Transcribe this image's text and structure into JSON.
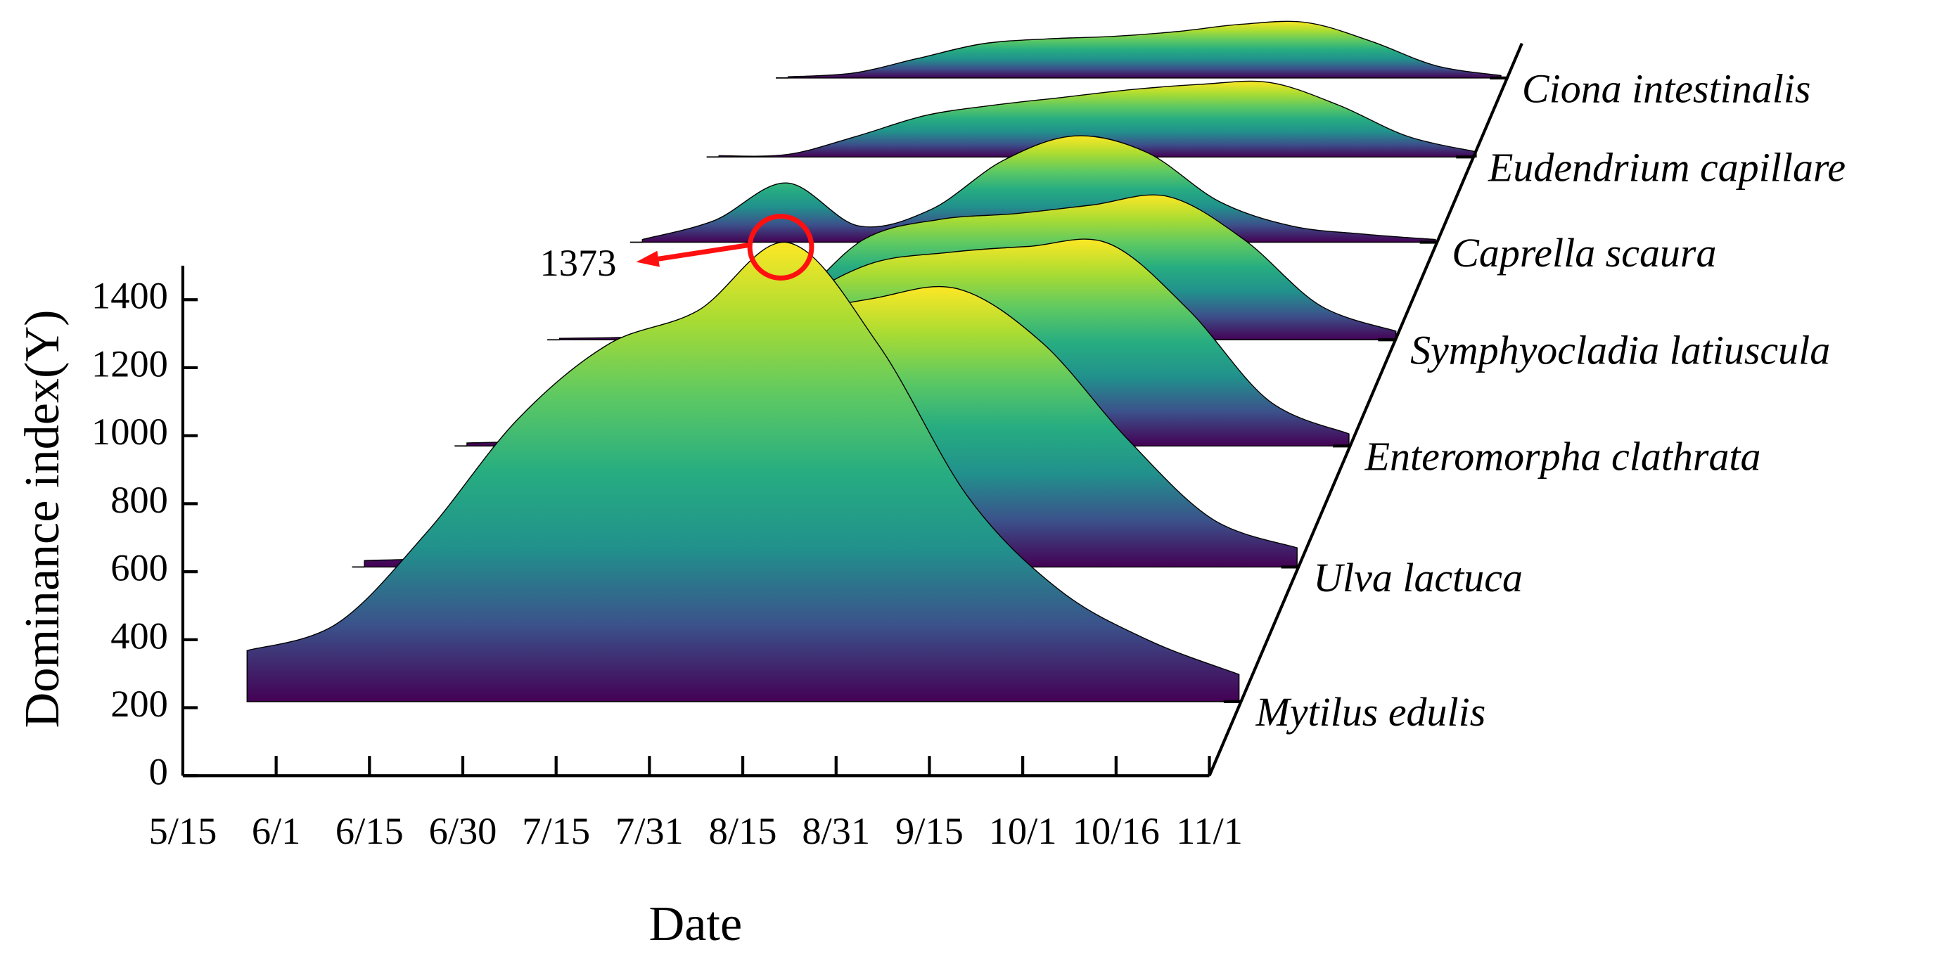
{
  "chart_data": {
    "type": "ridgeline",
    "x_label": "Date",
    "y_label": "Dominance index(Y)",
    "categories": [
      "5/15",
      "6/1",
      "6/15",
      "6/30",
      "7/15",
      "7/31",
      "8/15",
      "8/31",
      "9/15",
      "10/1",
      "10/16",
      "11/1"
    ],
    "ylim": [
      0,
      1500
    ],
    "yticks": [
      0,
      200,
      400,
      600,
      800,
      1000,
      1200,
      1400
    ],
    "colormap": [
      "#440154",
      "#3b528b",
      "#21918c",
      "#27ad81",
      "#5ec962",
      "#aadc32",
      "#fde725"
    ],
    "annotation": 1373,
    "series": [
      {
        "name": "Mytilus edulis",
        "values": [
          150,
          230,
          500,
          830,
          1050,
          1150,
          1350,
          1050,
          600,
          330,
          180,
          80
        ]
      },
      {
        "name": "Ulva lactuca",
        "values": [
          20,
          40,
          150,
          400,
          650,
          780,
          840,
          870,
          700,
          400,
          150,
          60
        ]
      },
      {
        "name": "Enteromorpha clathrata",
        "values": [
          10,
          20,
          60,
          200,
          450,
          600,
          640,
          660,
          670,
          450,
          150,
          40
        ]
      },
      {
        "name": "Symphyocladia latiuscula",
        "values": [
          5,
          10,
          30,
          120,
          350,
          420,
          440,
          470,
          500,
          350,
          120,
          30
        ]
      },
      {
        "name": "Caprella scaura",
        "values": [
          10,
          80,
          218,
          60,
          120,
          300,
          391,
          330,
          150,
          60,
          30,
          10
        ]
      },
      {
        "name": "Eudendrium capillare",
        "values": [
          5,
          10,
          80,
          160,
          200,
          230,
          260,
          280,
          287,
          200,
          80,
          20
        ]
      },
      {
        "name": "Ciona intestinalis",
        "values": [
          5,
          20,
          80,
          140,
          160,
          170,
          190,
          220,
          227,
          150,
          50,
          10
        ]
      }
    ]
  }
}
